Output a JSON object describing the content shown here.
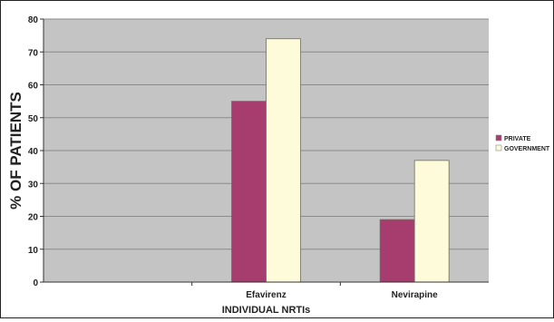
{
  "chart_data": {
    "type": "bar",
    "title": "",
    "xlabel": "INDIVIDUAL NRTIs",
    "ylabel": "% OF PATIENTS",
    "categories": [
      "",
      "Efavirenz",
      "Nevirapine"
    ],
    "series": [
      {
        "name": "PRIVATE",
        "values": [
          0,
          55,
          19
        ],
        "color": "#a63d6e"
      },
      {
        "name": "GOVERNMENT",
        "values": [
          0,
          74,
          37
        ],
        "color": "#fdfbd9"
      }
    ],
    "ylim": [
      0,
      80
    ],
    "yticks": [
      0,
      10,
      20,
      30,
      40,
      50,
      60,
      70,
      80
    ],
    "grid": true,
    "legend_position": "right",
    "plot_background": "#c4c4c4"
  }
}
